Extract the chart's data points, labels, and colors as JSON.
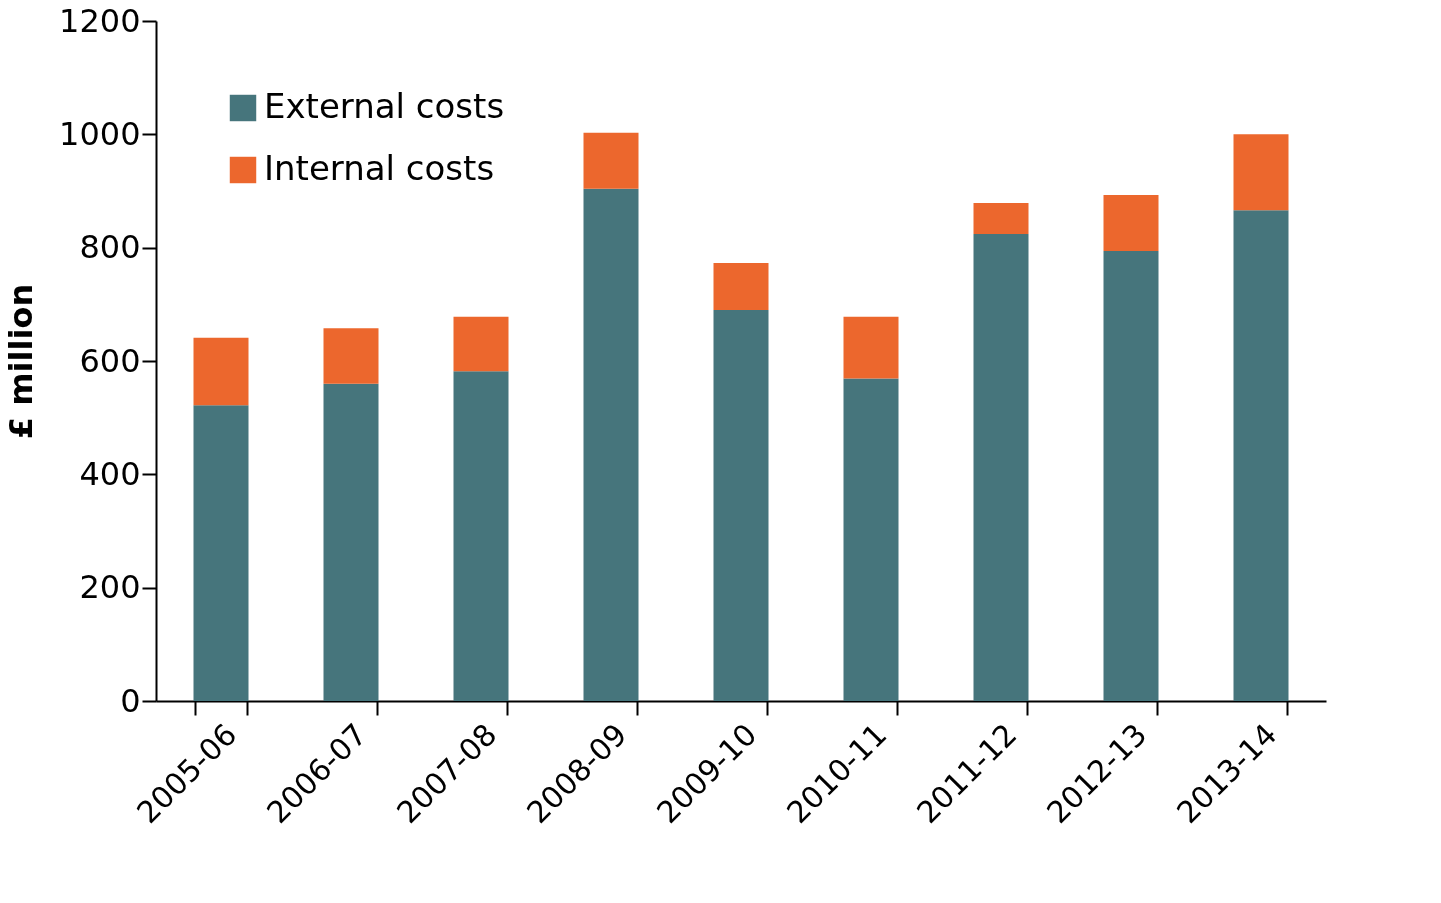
{
  "chart_data": {
    "type": "bar",
    "stacked": true,
    "ylabel": "£ million",
    "categories": [
      "2005-06",
      "2006-07",
      "2007-08",
      "2008-09",
      "2009-10",
      "2010-11",
      "2011-12",
      "2012-13",
      "2013-14"
    ],
    "series": [
      {
        "name": "External costs",
        "color": "#46757c",
        "values": [
          522,
          560,
          582,
          904,
          690,
          569,
          824,
          794,
          866
        ]
      },
      {
        "name": "Internal costs",
        "color": "#ec672d",
        "values": [
          119,
          98,
          96,
          99,
          83,
          109,
          55,
          99,
          134
        ]
      }
    ],
    "ylim": [
      0,
      1200
    ],
    "yticks": [
      0,
      200,
      400,
      600,
      800,
      1000,
      1200
    ],
    "grid": false,
    "legend": "top left"
  }
}
